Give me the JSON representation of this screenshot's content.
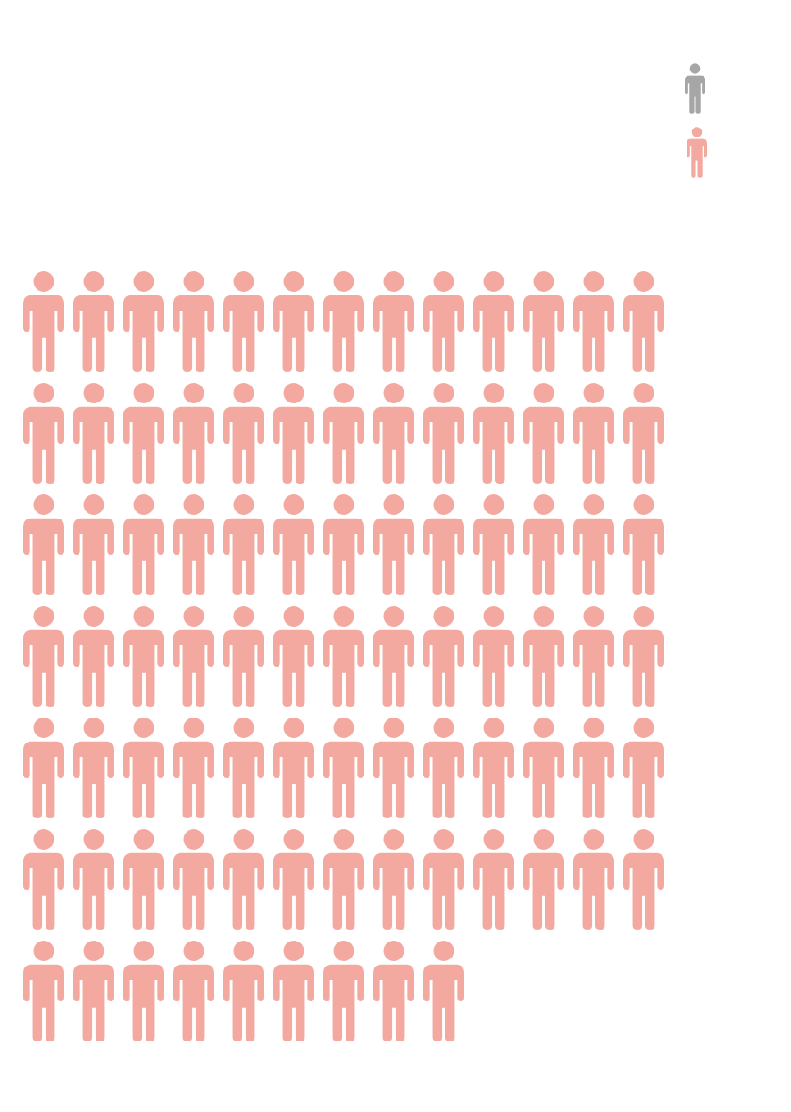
{
  "chart_data": {
    "type": "pictograph",
    "title": "",
    "legend": {
      "placement": "top-right",
      "items": [
        {
          "icon": "person-icon",
          "color": "#a6a6a6",
          "label": ""
        },
        {
          "icon": "person-icon",
          "color": "#f4a9a0",
          "label": ""
        }
      ]
    },
    "series": [
      {
        "icon": "person-icon",
        "color": "#f4a9a0",
        "count": 87
      }
    ],
    "grid": {
      "columns": 13
    }
  }
}
